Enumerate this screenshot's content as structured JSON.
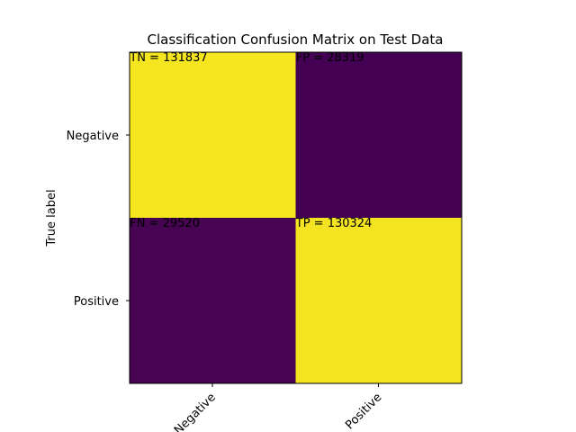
{
  "chart_data": {
    "type": "heatmap",
    "title": "Classification Confusion Matrix on Test Data",
    "ylabel": "True label",
    "xlabel": "",
    "x_categories": [
      "Negative",
      "Positive"
    ],
    "y_categories": [
      "Negative",
      "Positive"
    ],
    "values": [
      [
        131837,
        28319
      ],
      [
        29520,
        130324
      ]
    ],
    "cell_labels": [
      [
        "TN = 131837",
        "FP = 28319"
      ],
      [
        "FN = 29520",
        "TP = 130324"
      ]
    ],
    "color_high": "#f6e620",
    "color_low": "#440154",
    "grid": false
  }
}
